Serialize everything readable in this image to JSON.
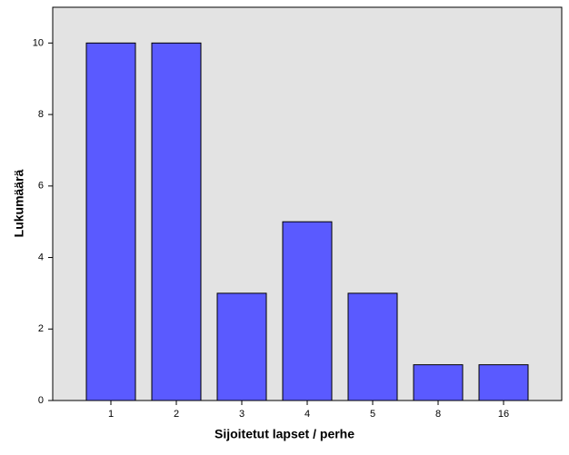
{
  "chart_data": {
    "type": "bar",
    "x_label": "Sijoitetut lapset / perhe",
    "y_label": "Lukumäärä",
    "categories": [
      "1",
      "2",
      "3",
      "4",
      "5",
      "8",
      "16"
    ],
    "values": [
      10,
      10,
      3,
      5,
      3,
      1,
      1
    ],
    "color": "#5a5aff",
    "ylim": [
      0,
      11
    ],
    "yticks": [
      0,
      2,
      4,
      6,
      8,
      10
    ],
    "grid": false
  }
}
